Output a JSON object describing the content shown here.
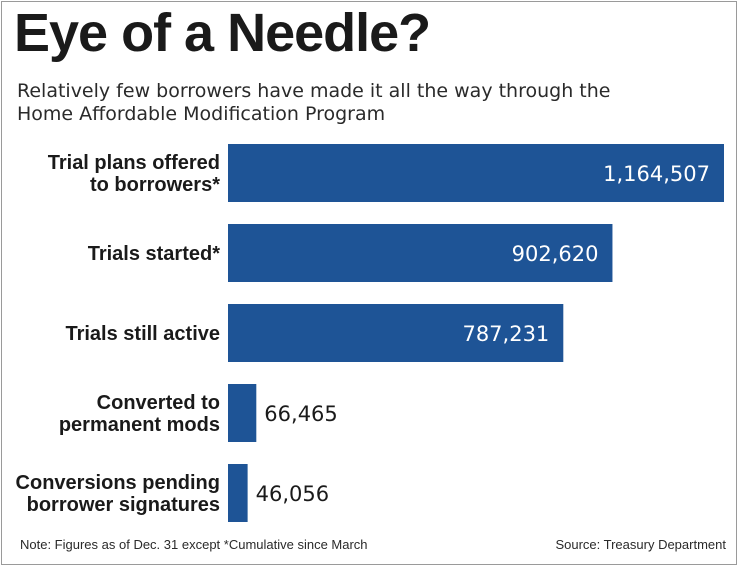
{
  "chart_data": {
    "type": "bar",
    "orientation": "horizontal",
    "title": "Eye of a Needle?",
    "subtitle": "Relatively few borrowers have made it all the way through the\nHome Affordable Modification Program",
    "categories": [
      [
        "Trial plans offered",
        "to borrowers*"
      ],
      [
        "Trials started*"
      ],
      [
        "Trials still active"
      ],
      [
        "Converted to",
        "permanent mods"
      ],
      [
        "Conversions pending",
        "borrower signatures"
      ]
    ],
    "values": [
      1164507,
      902620,
      787231,
      66465,
      46056
    ],
    "value_labels": [
      "1,164,507",
      "902,620",
      "787,231",
      "66,465",
      "46,056"
    ],
    "xlim": [
      0,
      1164507
    ],
    "grid": false,
    "legend": "none",
    "bar_color": "#1e5496"
  },
  "footer": {
    "note": "Note: Figures as of Dec. 31 except *Cumulative since March",
    "source": "Source: Treasury Department"
  }
}
